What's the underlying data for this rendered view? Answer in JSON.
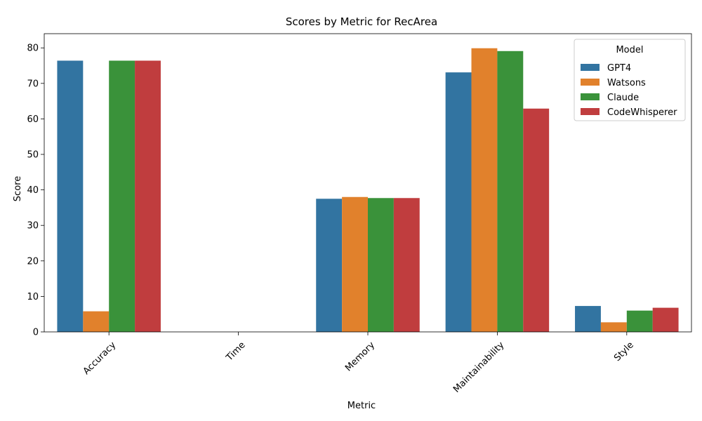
{
  "chart_data": {
    "type": "bar",
    "title": "Scores by Metric for RecArea",
    "xlabel": "Metric",
    "ylabel": "Score",
    "categories": [
      "Accuracy",
      "Time",
      "Memory",
      "Maintainability",
      "Style"
    ],
    "ylim": [
      0,
      84
    ],
    "yticks": [
      0,
      10,
      20,
      30,
      40,
      50,
      60,
      70,
      80
    ],
    "grid": false,
    "legend": {
      "title": "Model",
      "placement": "top-right"
    },
    "series": [
      {
        "name": "GPT4",
        "color": "#3274a1",
        "values": [
          76.4,
          0,
          37.5,
          73.1,
          7.3
        ]
      },
      {
        "name": "Watsons",
        "color": "#e1812c",
        "values": [
          5.8,
          0,
          38.0,
          79.9,
          2.7
        ]
      },
      {
        "name": "Claude",
        "color": "#3a923a",
        "values": [
          76.4,
          0,
          37.7,
          79.1,
          6.0
        ]
      },
      {
        "name": "CodeWhisperer",
        "color": "#c03d3e",
        "values": [
          76.4,
          0,
          37.7,
          62.9,
          6.8
        ]
      }
    ]
  }
}
